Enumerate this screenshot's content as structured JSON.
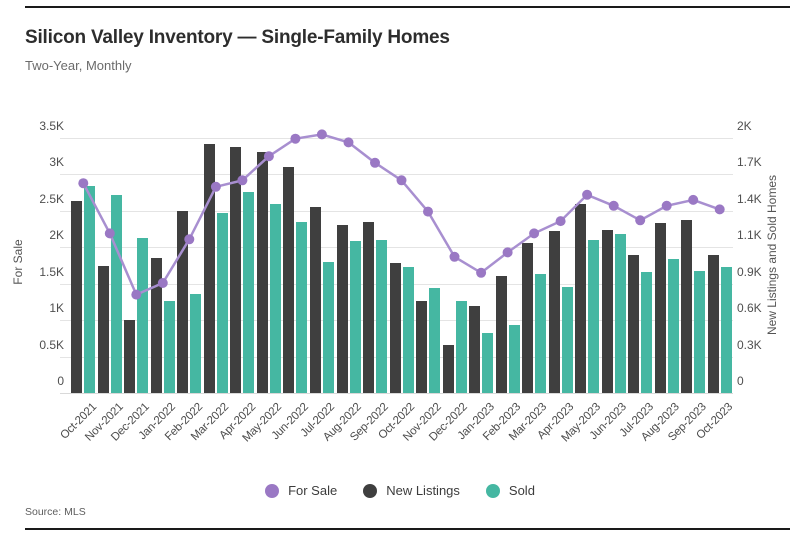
{
  "header": {
    "title": "Silicon Valley Inventory — Single-Family Homes",
    "subtitle": "Two-Year, Monthly"
  },
  "footer": {
    "source": "Source: MLS"
  },
  "legend": [
    {
      "label": "For Sale",
      "color": "#9a78c4"
    },
    {
      "label": "New Listings",
      "color": "#3f3f3f"
    },
    {
      "label": "Sold",
      "color": "#45b7a2"
    }
  ],
  "colors": {
    "line": "#a88fd0",
    "line_dot": "#9a78c4",
    "bar_dark": "#3f3f3f",
    "bar_teal": "#45b7a2",
    "gridline": "#e4e4e4",
    "rule": "#1a1a1a"
  },
  "chart_data": {
    "type": "bar",
    "subtype": "grouped bars with overlay line on secondary axis",
    "grid": "horizontal only",
    "legend_position": "bottom center",
    "categories": [
      "Oct-2021",
      "Nov-2021",
      "Dec-2021",
      "Jan-2022",
      "Feb-2022",
      "Mar-2022",
      "Apr-2022",
      "May-2022",
      "Jun-2022",
      "Jul-2022",
      "Aug-2022",
      "Sep-2022",
      "Oct-2022",
      "Nov-2022",
      "Dec-2022",
      "Jan-2023",
      "Feb-2023",
      "Mar-2023",
      "Apr-2023",
      "May-2023",
      "Jun-2023",
      "Jul-2023",
      "Aug-2023",
      "Sep-2023",
      "Oct-2023"
    ],
    "series": [
      {
        "name": "For Sale",
        "type": "line",
        "axis": "left",
        "color": "#9a78c4",
        "values": [
          2880,
          2190,
          1350,
          1510,
          2110,
          2830,
          2920,
          3250,
          3490,
          3550,
          3440,
          3160,
          2920,
          2490,
          1870,
          1650,
          1930,
          2190,
          2360,
          2720,
          2570,
          2370,
          2570,
          2650,
          2520
        ]
      },
      {
        "name": "New Listings",
        "type": "bar",
        "axis": "right",
        "color": "#3f3f3f",
        "values": [
          1510,
          1000,
          570,
          1060,
          1430,
          1950,
          1930,
          1890,
          1770,
          1460,
          1320,
          1340,
          1020,
          720,
          380,
          680,
          920,
          1180,
          1270,
          1480,
          1280,
          1080,
          1330,
          1360,
          1080
        ]
      },
      {
        "name": "Sold",
        "type": "bar",
        "axis": "right",
        "color": "#45b7a2",
        "values": [
          1620,
          1550,
          1220,
          720,
          780,
          1410,
          1580,
          1480,
          1340,
          1030,
          1190,
          1200,
          990,
          820,
          720,
          470,
          530,
          930,
          830,
          1200,
          1250,
          950,
          1050,
          960,
          990
        ]
      }
    ],
    "left_axis": {
      "title": "For Sale",
      "min": 0,
      "max": 3500,
      "ticks": [
        "0",
        "0.5K",
        "1K",
        "1.5K",
        "2K",
        "2.5K",
        "3K",
        "3.5K"
      ]
    },
    "right_axis": {
      "title": "New Listings and Sold Homes",
      "min": 0,
      "max": 2000,
      "ticks": [
        "0",
        "0.3K",
        "0.6K",
        "0.9K",
        "1.1K",
        "1.4K",
        "1.7K",
        "2K"
      ]
    }
  }
}
